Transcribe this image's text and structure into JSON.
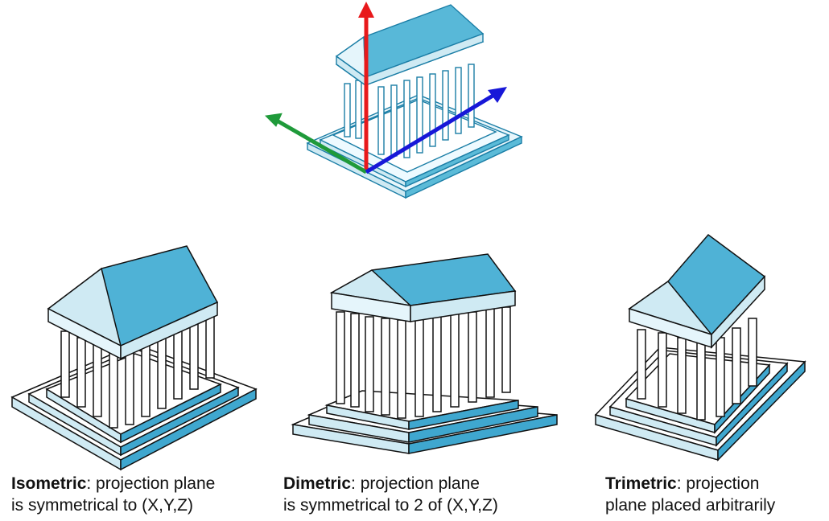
{
  "captions": [
    {
      "term": "Isometric",
      "rest1": ": projection plane",
      "line2": "is symmetrical to (X,Y,Z)"
    },
    {
      "term": "Dimetric",
      "rest1": ": projection plane",
      "line2": "is symmetrical to 2 of (X,Y,Z)"
    },
    {
      "term": "Trimetric",
      "rest1": ": projection",
      "line2": "plane placed arbitrarily"
    }
  ],
  "colors": {
    "axis_vertical": "#e8191b",
    "axis_left": "#1f9a3a",
    "axis_right": "#1717d8",
    "roof_top": "#58b8d8",
    "roof_light": "#cfeaf3",
    "outline": "#111111"
  },
  "icons": [
    "temple-icon",
    "axis-arrow-icon"
  ]
}
